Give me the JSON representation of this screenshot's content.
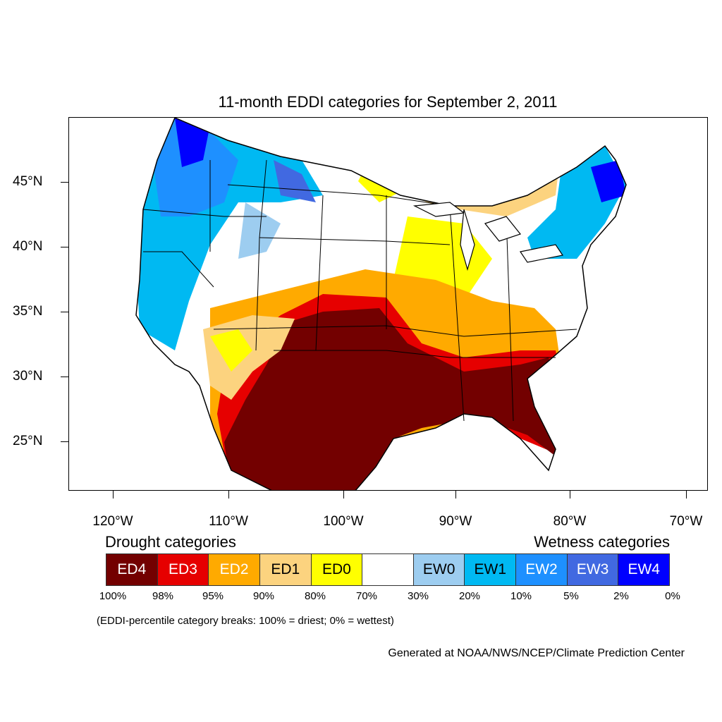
{
  "title": "11-month EDDI categories for September 2, 2011",
  "axes": {
    "lat_labels": [
      "45°N",
      "40°N",
      "35°N",
      "30°N",
      "25°N"
    ],
    "lon_labels": [
      "120°W",
      "110°W",
      "100°W",
      "90°W",
      "80°W",
      "70°W"
    ]
  },
  "legend": {
    "drought_heading": "Drought categories",
    "wetness_heading": "Wetness categories",
    "categories": [
      {
        "label": "ED4",
        "color": "#730000",
        "text_color": "#ffffff"
      },
      {
        "label": "ED3",
        "color": "#e60000",
        "text_color": "#ffffff"
      },
      {
        "label": "ED2",
        "color": "#ffaa00",
        "text_color": "#ffffff"
      },
      {
        "label": "ED1",
        "color": "#fcd37f",
        "text_color": "#000000"
      },
      {
        "label": "ED0",
        "color": "#ffff00",
        "text_color": "#000000"
      },
      {
        "label": "",
        "color": "#ffffff",
        "text_color": "#000000"
      },
      {
        "label": "EW0",
        "color": "#9dcdf0",
        "text_color": "#000000"
      },
      {
        "label": "EW1",
        "color": "#00b9f2",
        "text_color": "#000000"
      },
      {
        "label": "EW2",
        "color": "#1e90ff",
        "text_color": "#ffffff"
      },
      {
        "label": "EW3",
        "color": "#4169e1",
        "text_color": "#ffffff"
      },
      {
        "label": "EW4",
        "color": "#0000ff",
        "text_color": "#ffffff"
      }
    ],
    "percentiles": [
      "100%",
      "98%",
      "95%",
      "90%",
      "80%",
      "70%",
      "30%",
      "20%",
      "10%",
      "5%",
      "2%",
      "0%"
    ]
  },
  "note": "(EDDI-percentile category breaks: 100% = driest; 0% = wettest)",
  "credit": "Generated at NOAA/NWS/NCEP/Climate Prediction Center"
}
